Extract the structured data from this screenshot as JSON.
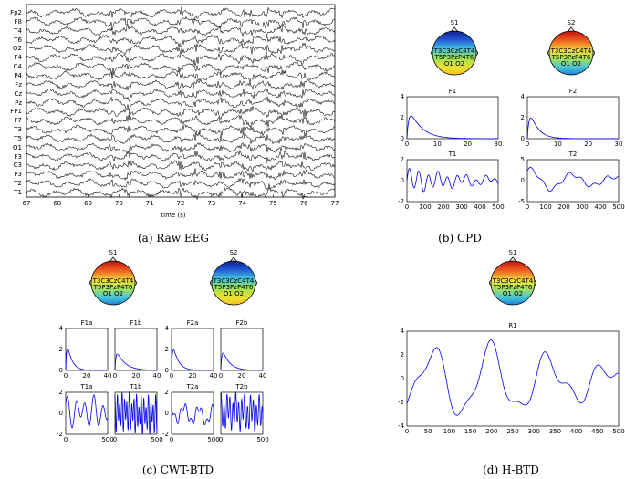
{
  "panels": {
    "a": {
      "caption": "(a) Raw EEG",
      "xlabel": "time (s)",
      "x_ticks": [
        "67",
        "68",
        "69",
        "70",
        "71",
        "72",
        "73",
        "74",
        "75",
        "76",
        "77"
      ],
      "channels": [
        "Fp2",
        "F8",
        "T4",
        "T6",
        "O2",
        "F4",
        "C4",
        "P4",
        "Fz",
        "Cz",
        "Pz",
        "FP1",
        "F7",
        "T3",
        "T5",
        "O1",
        "F3",
        "C3",
        "P3",
        "T2",
        "T1"
      ]
    },
    "b": {
      "caption": "(b) CPD",
      "maps": [
        "S1",
        "S2"
      ],
      "freq_titles": [
        "F1",
        "F2"
      ],
      "time_titles": [
        "T1",
        "T2"
      ],
      "freq_yticks": [
        "4",
        "2",
        "0"
      ],
      "freq_xticks": [
        "0",
        "10",
        "20",
        "30"
      ],
      "t1_yticks": [
        "2",
        "0",
        "-2"
      ],
      "t2_yticks": [
        "5",
        "0",
        "-5"
      ],
      "time_xticks": [
        "0",
        "100",
        "200",
        "300",
        "400",
        "500"
      ]
    },
    "c": {
      "caption": "(c) CWT-BTD",
      "maps": [
        "S1",
        "S2"
      ],
      "freq_titles": [
        "F1a",
        "F1b",
        "F2a",
        "F2b"
      ],
      "time_titles": [
        "T1a",
        "T1b",
        "T2a",
        "T2b"
      ],
      "freq_yticks": [
        "4",
        "2",
        "0"
      ],
      "freq_xticks": [
        "0",
        "20",
        "40"
      ],
      "time_yticks": [
        "2",
        "0",
        "-2"
      ],
      "time_xticks": [
        "0",
        "500"
      ]
    },
    "d": {
      "caption": "(d) H-BTD",
      "maps": [
        "S1"
      ],
      "plot_title": "R1",
      "yticks": [
        "4",
        "2",
        "0",
        "-2",
        "-4"
      ],
      "xticks": [
        "0",
        "50",
        "100",
        "150",
        "200",
        "250",
        "300",
        "350",
        "400",
        "450",
        "500"
      ]
    }
  },
  "topomap_labels": {
    "line1": "T3C3CzC4T4",
    "line2": "T5P3PzP4T6",
    "line3": "O1 O2"
  },
  "colors": {
    "trace": "#0000ee",
    "eeg": "#000000"
  }
}
